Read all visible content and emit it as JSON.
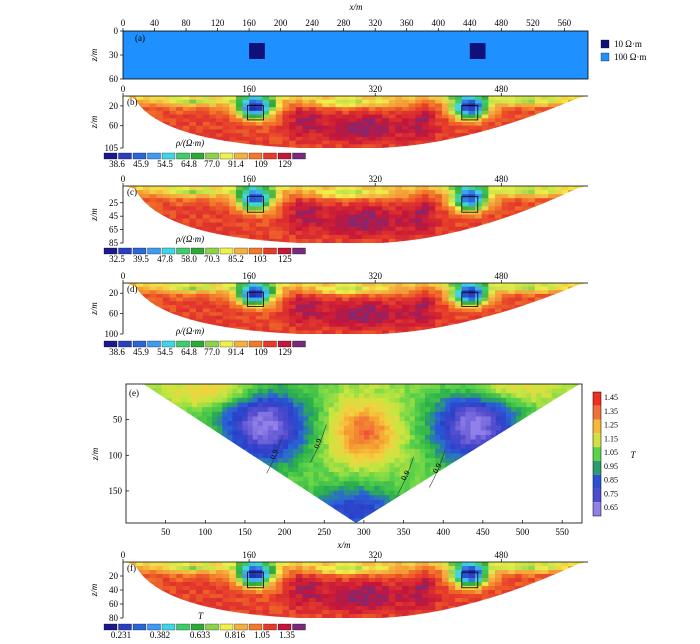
{
  "chart_data": [
    {
      "panel": "(a)",
      "type": "model",
      "xlabel": "x/m",
      "ylabel": "z/m",
      "x_ticks": [
        0,
        40,
        80,
        120,
        160,
        200,
        240,
        280,
        320,
        360,
        400,
        440,
        480,
        520,
        560
      ],
      "y_ticks": [
        0,
        30,
        60
      ],
      "xlim": [
        0,
        590
      ],
      "ylim": [
        0,
        60
      ],
      "background": {
        "label": "100 Ω·m",
        "color": "#1e90ff"
      },
      "blocks": [
        {
          "label": "10 Ω·m",
          "color": "#10107a",
          "x": [
            160,
            180
          ],
          "z": [
            15,
            35
          ]
        },
        {
          "label": "10 Ω·m",
          "color": "#10107a",
          "x": [
            440,
            460
          ],
          "z": [
            15,
            35
          ]
        }
      ],
      "legend": [
        {
          "label": "10 Ω·m",
          "color": "#10107a"
        },
        {
          "label": "100 Ω·m",
          "color": "#1e90ff"
        }
      ]
    },
    {
      "panel": "(b)",
      "type": "heatmap",
      "ylabel": "z/m",
      "x_ticks": [
        0,
        160,
        320,
        480
      ],
      "y_ticks": [
        20,
        60,
        105
      ],
      "xlim": [
        0,
        590
      ],
      "ylim": [
        0,
        105
      ],
      "colorbar_label": "ρ/(Ω·m)",
      "colorbar_ticks": [
        "38.6",
        "45.9",
        "54.5",
        "64.8",
        "77.0",
        "91.4",
        "109",
        "129"
      ]
    },
    {
      "panel": "(c)",
      "type": "heatmap",
      "ylabel": "z/m",
      "x_ticks": [
        0,
        160,
        320,
        480
      ],
      "y_ticks": [
        25,
        45,
        65,
        85
      ],
      "xlim": [
        0,
        590
      ],
      "ylim": [
        0,
        85
      ],
      "colorbar_label": "ρ/(Ω·m)",
      "colorbar_ticks": [
        "32.5",
        "39.5",
        "47.8",
        "58.0",
        "70.3",
        "85.2",
        "103",
        "125"
      ]
    },
    {
      "panel": "(d)",
      "type": "heatmap",
      "ylabel": "z/m",
      "x_ticks": [
        0,
        160,
        320,
        480
      ],
      "y_ticks": [
        20,
        60,
        100
      ],
      "xlim": [
        0,
        590
      ],
      "ylim": [
        0,
        100
      ],
      "colorbar_label": "ρ/(Ω·m)",
      "colorbar_ticks": [
        "38.6",
        "45.9",
        "54.5",
        "64.8",
        "77.0",
        "91.4",
        "109",
        "129"
      ]
    },
    {
      "panel": "(e)",
      "type": "heatmap",
      "xlabel": "x/m",
      "ylabel": "z/m",
      "x_ticks": [
        50,
        100,
        150,
        200,
        250,
        300,
        350,
        400,
        450,
        500,
        550
      ],
      "y_ticks": [
        50,
        100,
        150
      ],
      "xlim": [
        0,
        575
      ],
      "ylim": [
        0,
        195
      ],
      "contour_labels": [
        "0.9",
        "0.9",
        "0.9",
        "0.9"
      ],
      "colorbar_label": "T",
      "colorbar_ticks": [
        "1.45",
        "1.35",
        "1.25",
        "1.15",
        "1.05",
        "0.95",
        "0.85",
        "0.75",
        "0.65"
      ]
    },
    {
      "panel": "(f)",
      "type": "heatmap",
      "ylabel": "z/m",
      "x_ticks": [
        0,
        160,
        320,
        480
      ],
      "y_ticks": [
        20,
        40,
        60,
        80
      ],
      "xlim": [
        0,
        590
      ],
      "ylim": [
        0,
        80
      ],
      "colorbar_label": "T",
      "colorbar_ticks": [
        "0.231",
        "0.382",
        "0.633",
        "0.816",
        "1.05",
        "1.35"
      ]
    }
  ],
  "palette": {
    "resistivity": [
      "#1a1a8c",
      "#2a3fc0",
      "#2a66d9",
      "#3f9bf0",
      "#40d6e8",
      "#3fcc6a",
      "#2fa83a",
      "#8fd24a",
      "#f0f04a",
      "#f5b040",
      "#f27a28",
      "#e63b2b",
      "#c4163a",
      "#7a2a7a"
    ],
    "ratio": [
      "#f0301e",
      "#f0603a",
      "#f5a030",
      "#f5d040",
      "#c8e640",
      "#5ad24a",
      "#2ab04a",
      "#2a64d8",
      "#2a3fc8",
      "#5a50d0",
      "#9080e8"
    ]
  }
}
